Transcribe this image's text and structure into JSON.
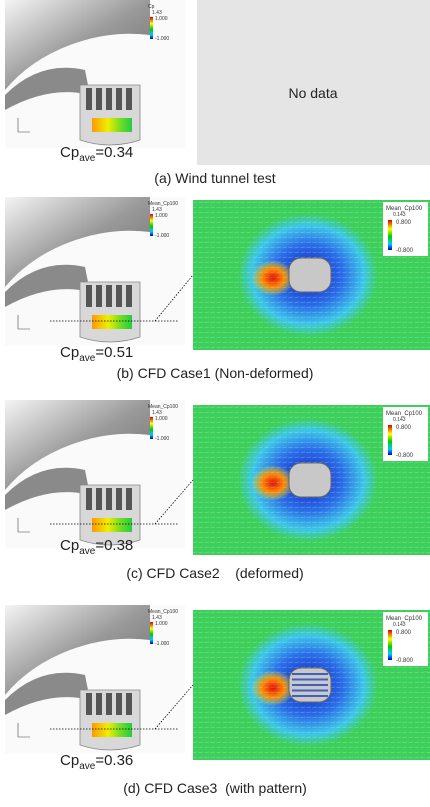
{
  "panels": [
    {
      "cp_symbol": "Cp",
      "cp_subscript": "ave",
      "cp_value": "=0.34",
      "caption": "(a) Wind tunnel test",
      "legend": {
        "title": "Cp",
        "sub": "1.43",
        "max": "1.000",
        "min": "-1.000"
      },
      "no_data": "No data"
    },
    {
      "cp_symbol": "Cp",
      "cp_subscript": "ave",
      "cp_value": "=0.51",
      "caption": "(b) CFD Case1 (Non-deformed)",
      "legend": {
        "title": "Mean_Cp100",
        "sub": "1.43",
        "max": "1.000",
        "min": "-1.000"
      },
      "field_legend": {
        "title": "Mean_Cp100",
        "sub": "0.143",
        "max": "0.800",
        "min": "-0.800"
      }
    },
    {
      "cp_symbol": "Cp",
      "cp_subscript": "ave",
      "cp_value": "=0.38",
      "caption": "(c) CFD Case2    (deformed)",
      "legend": {
        "title": "Mean_Cp100",
        "sub": "1.43",
        "max": "1.000",
        "min": "-1.000"
      },
      "field_legend": {
        "title": "Mean_Cp100",
        "sub": "0.143",
        "max": "0.800",
        "min": "-0.800"
      }
    },
    {
      "cp_symbol": "Cp",
      "cp_subscript": "ave",
      "cp_value": "=0.36",
      "caption": "(d) CFD Case3  (with pattern)",
      "legend": {
        "title": "Mean_Cp100",
        "sub": "1.43",
        "max": "1.000",
        "min": "-1.000"
      },
      "field_legend": {
        "title": "Mean_Cp100",
        "sub": "0.143",
        "max": "0.800",
        "min": "-0.800"
      }
    }
  ]
}
